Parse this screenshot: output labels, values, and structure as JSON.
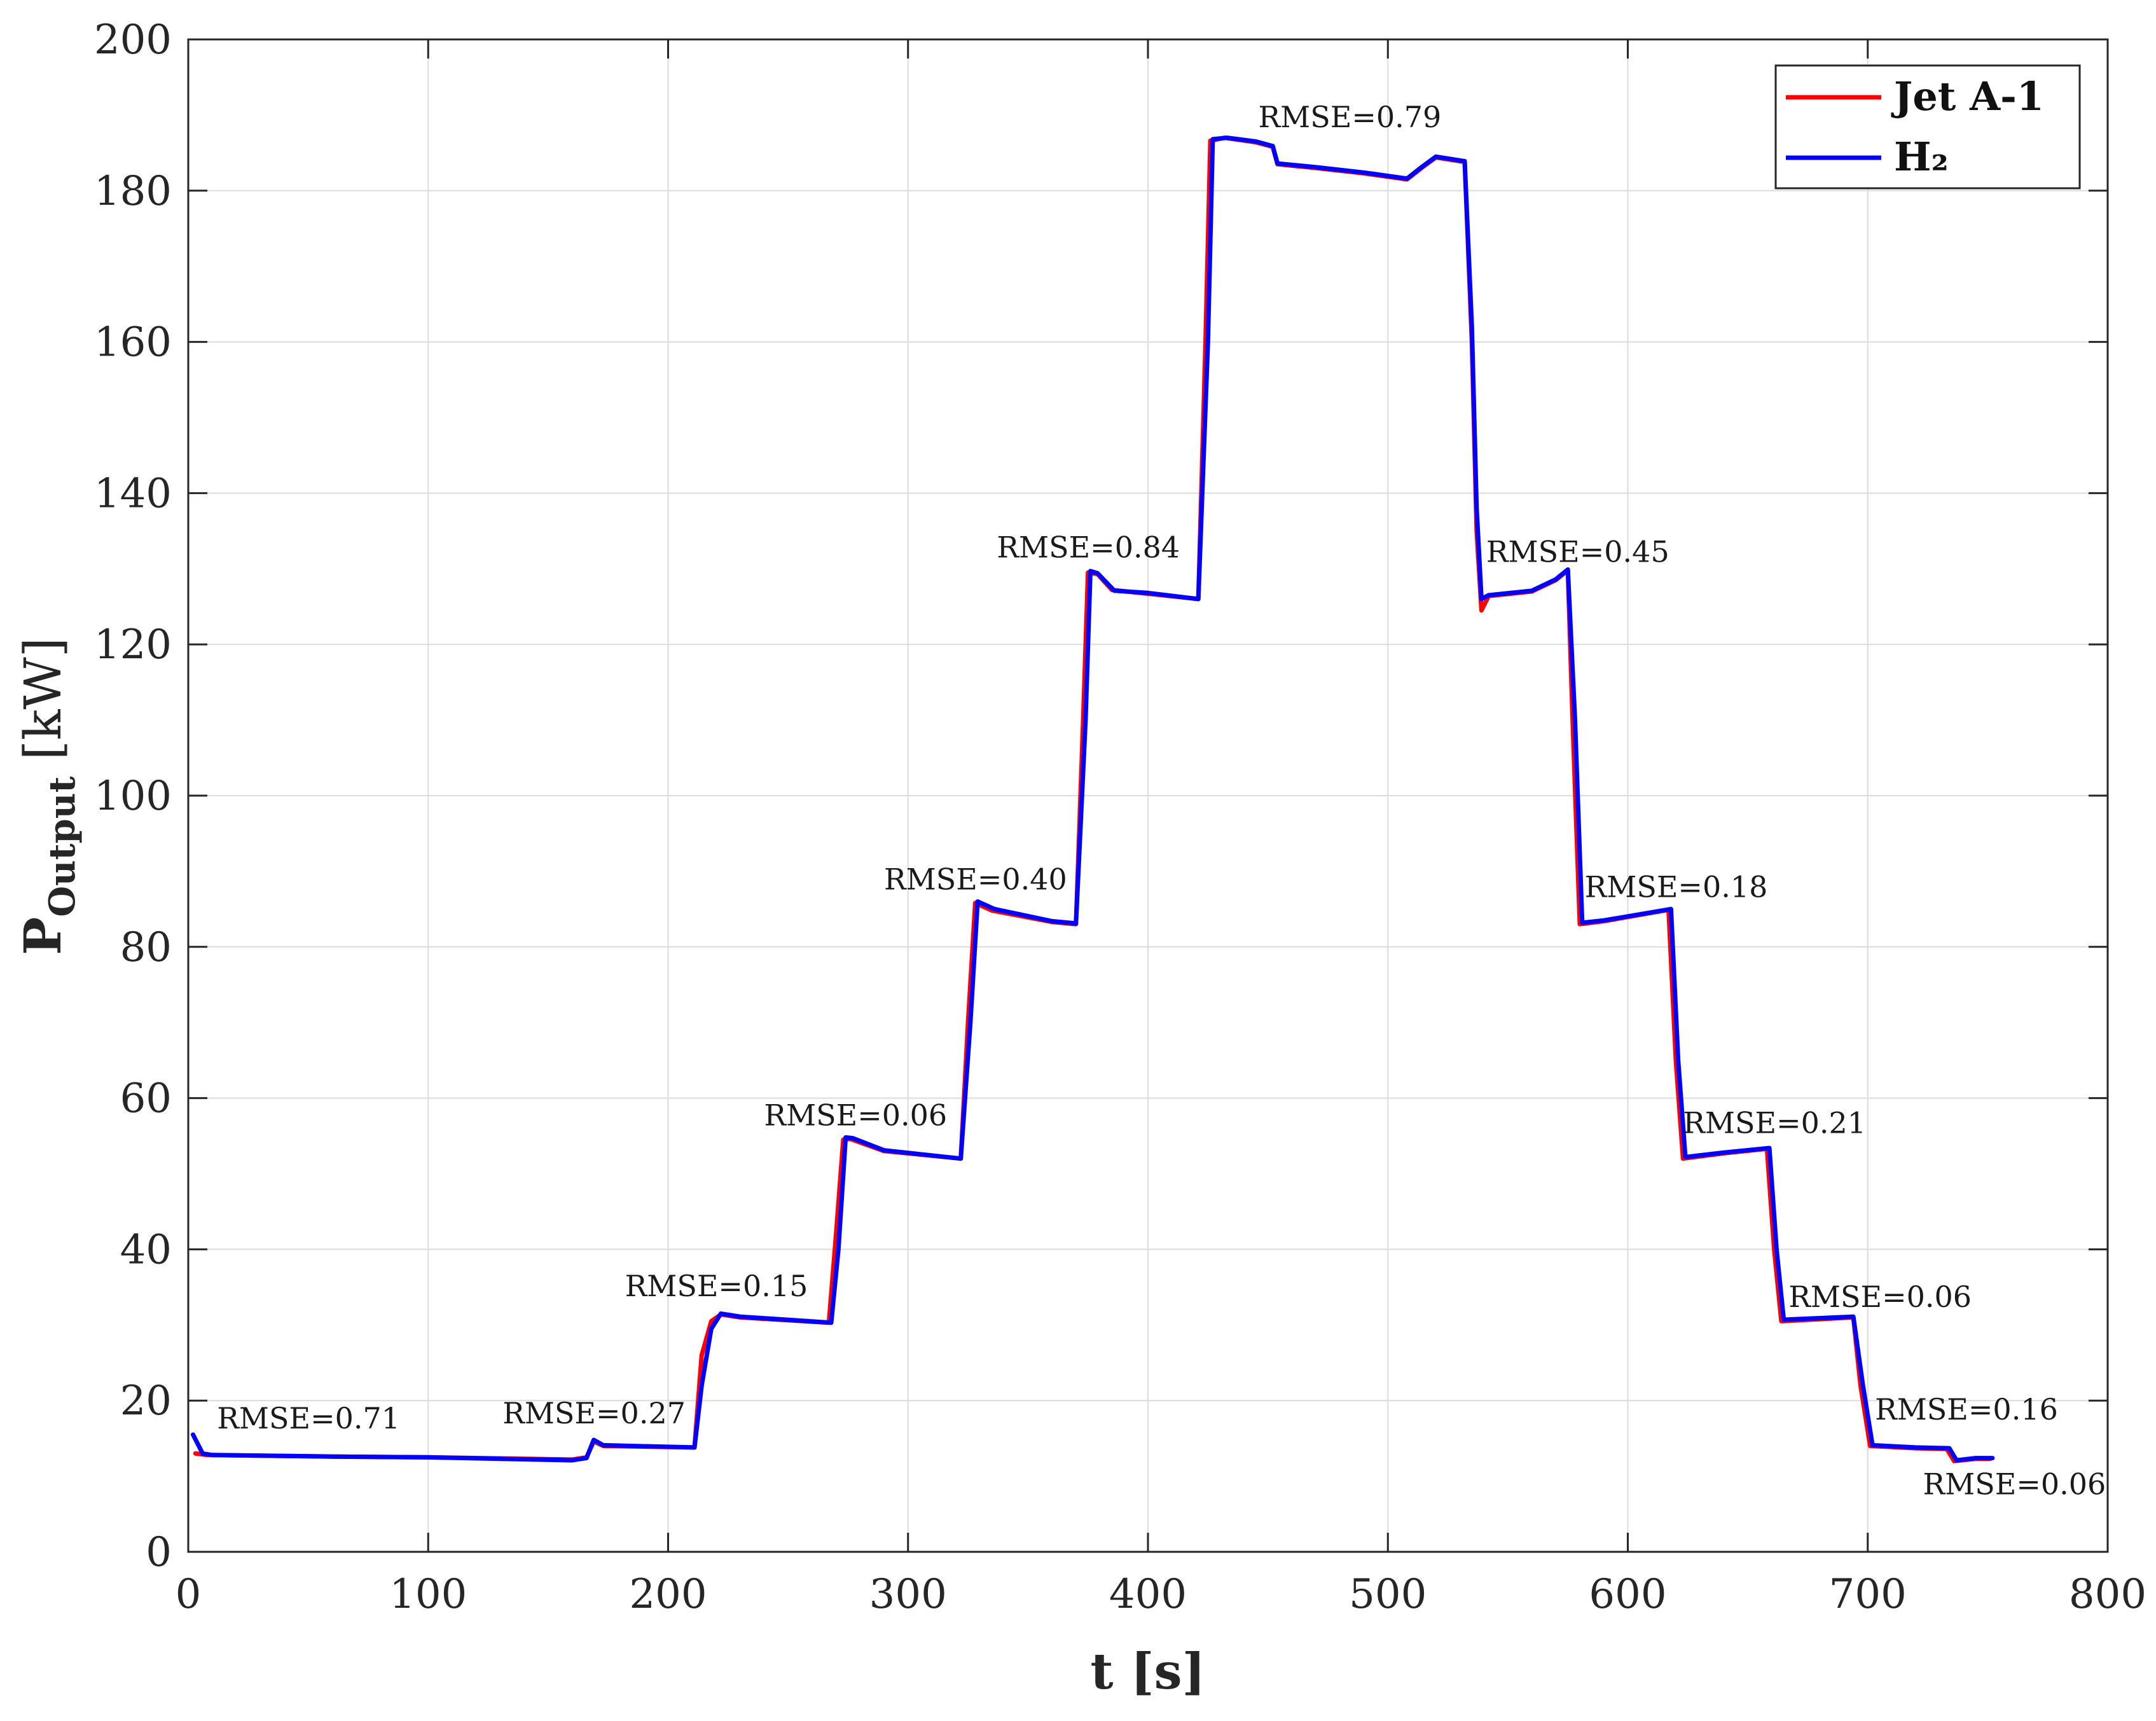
{
  "chart_data": {
    "type": "line",
    "xlabel": "t  [s]",
    "ylabel": "P",
    "ylabel_subscript": "Output",
    "ylabel_unit": " [kW]",
    "xlim": [
      0,
      800
    ],
    "ylim": [
      0,
      200
    ],
    "xticks": [
      0,
      100,
      200,
      300,
      400,
      500,
      600,
      700,
      800
    ],
    "yticks": [
      0,
      20,
      40,
      60,
      80,
      100,
      120,
      140,
      160,
      180,
      200
    ],
    "grid": true,
    "legend_position": "top-right",
    "series": [
      {
        "name": "Jet A-1",
        "color": "#ff0000",
        "points": [
          [
            3,
            13.0
          ],
          [
            8,
            12.8
          ],
          [
            60,
            12.6
          ],
          [
            100,
            12.5
          ],
          [
            160,
            12.2
          ],
          [
            166,
            12.5
          ],
          [
            169,
            14.6
          ],
          [
            173,
            14.0
          ],
          [
            211,
            13.8
          ],
          [
            214,
            26.0
          ],
          [
            218,
            30.5
          ],
          [
            222,
            31.4
          ],
          [
            230,
            31.0
          ],
          [
            267,
            30.3
          ],
          [
            270,
            42.0
          ],
          [
            273,
            54.5
          ],
          [
            276,
            54.6
          ],
          [
            290,
            53.0
          ],
          [
            322,
            52.0
          ],
          [
            325,
            70.0
          ],
          [
            328,
            85.8
          ],
          [
            335,
            84.8
          ],
          [
            360,
            83.3
          ],
          [
            370,
            83.0
          ],
          [
            373,
            110.0
          ],
          [
            375,
            129.5
          ],
          [
            379,
            129.3
          ],
          [
            385,
            127.2
          ],
          [
            400,
            126.7
          ],
          [
            421,
            126.0
          ],
          [
            424,
            160.0
          ],
          [
            426,
            186.6
          ],
          [
            432,
            187.0
          ],
          [
            445,
            186.4
          ],
          [
            452,
            185.8
          ],
          [
            454,
            183.5
          ],
          [
            470,
            183.0
          ],
          [
            490,
            182.3
          ],
          [
            508,
            181.5
          ],
          [
            514,
            183.0
          ],
          [
            520,
            184.4
          ],
          [
            532,
            183.8
          ],
          [
            535,
            160.0
          ],
          [
            537,
            135.0
          ],
          [
            539,
            124.5
          ],
          [
            542,
            126.4
          ],
          [
            560,
            127.0
          ],
          [
            570,
            128.5
          ],
          [
            575,
            129.8
          ],
          [
            577,
            110.0
          ],
          [
            580,
            83.0
          ],
          [
            590,
            83.4
          ],
          [
            617,
            84.9
          ],
          [
            620,
            65.0
          ],
          [
            623,
            52.0
          ],
          [
            640,
            52.7
          ],
          [
            658,
            53.3
          ],
          [
            661,
            40.0
          ],
          [
            664,
            30.5
          ],
          [
            694,
            31.0
          ],
          [
            697,
            22.0
          ],
          [
            701,
            14.0
          ],
          [
            720,
            13.7
          ],
          [
            733,
            13.6
          ],
          [
            736,
            12.0
          ],
          [
            745,
            12.3
          ],
          [
            751,
            12.3
          ]
        ]
      },
      {
        "name": "H₂",
        "color": "#0000ff",
        "points": [
          [
            2,
            15.5
          ],
          [
            6,
            13.0
          ],
          [
            10,
            12.8
          ],
          [
            60,
            12.6
          ],
          [
            100,
            12.5
          ],
          [
            160,
            12.1
          ],
          [
            166,
            12.4
          ],
          [
            169,
            14.8
          ],
          [
            173,
            14.1
          ],
          [
            211,
            13.8
          ],
          [
            214,
            22.0
          ],
          [
            218,
            29.5
          ],
          [
            222,
            31.5
          ],
          [
            230,
            31.1
          ],
          [
            268,
            30.3
          ],
          [
            271,
            40.0
          ],
          [
            274,
            54.8
          ],
          [
            277,
            54.7
          ],
          [
            290,
            53.1
          ],
          [
            322,
            52.0
          ],
          [
            326,
            70.0
          ],
          [
            329,
            86.0
          ],
          [
            336,
            85.0
          ],
          [
            360,
            83.4
          ],
          [
            370,
            83.1
          ],
          [
            374,
            110.0
          ],
          [
            376,
            129.7
          ],
          [
            379,
            129.4
          ],
          [
            386,
            127.1
          ],
          [
            400,
            126.8
          ],
          [
            421,
            126.0
          ],
          [
            425,
            160.0
          ],
          [
            427,
            186.8
          ],
          [
            433,
            187.0
          ],
          [
            445,
            186.5
          ],
          [
            452,
            185.9
          ],
          [
            454,
            183.6
          ],
          [
            470,
            183.1
          ],
          [
            490,
            182.4
          ],
          [
            508,
            181.6
          ],
          [
            514,
            183.1
          ],
          [
            520,
            184.5
          ],
          [
            532,
            183.9
          ],
          [
            535,
            162.0
          ],
          [
            537,
            138.0
          ],
          [
            539,
            126.0
          ],
          [
            542,
            126.5
          ],
          [
            560,
            127.1
          ],
          [
            570,
            128.6
          ],
          [
            575,
            129.9
          ],
          [
            578,
            110.0
          ],
          [
            581,
            83.2
          ],
          [
            590,
            83.5
          ],
          [
            618,
            85.0
          ],
          [
            621,
            65.0
          ],
          [
            624,
            52.2
          ],
          [
            640,
            52.8
          ],
          [
            659,
            53.4
          ],
          [
            662,
            40.0
          ],
          [
            665,
            30.7
          ],
          [
            694,
            31.1
          ],
          [
            698,
            22.0
          ],
          [
            702,
            14.1
          ],
          [
            720,
            13.8
          ],
          [
            734,
            13.7
          ],
          [
            737,
            12.1
          ],
          [
            745,
            12.4
          ],
          [
            752,
            12.4
          ]
        ]
      }
    ],
    "annotations": [
      {
        "text": "RMSE=0.71",
        "x": 12,
        "y": 16.3
      },
      {
        "text": "RMSE=0.27",
        "x": 131,
        "y": 17.0
      },
      {
        "text": "RMSE=0.15",
        "x": 182,
        "y": 33.8
      },
      {
        "text": "RMSE=0.06",
        "x": 240,
        "y": 56.4
      },
      {
        "text": "RMSE=0.40",
        "x": 290,
        "y": 87.6
      },
      {
        "text": "RMSE=0.84",
        "x": 337,
        "y": 131.5
      },
      {
        "text": "RMSE=0.79",
        "x": 446,
        "y": 188.4
      },
      {
        "text": "RMSE=0.45",
        "x": 541,
        "y": 130.9
      },
      {
        "text": "RMSE=0.18",
        "x": 582,
        "y": 86.6
      },
      {
        "text": "RMSE=0.21",
        "x": 623,
        "y": 55.4
      },
      {
        "text": "RMSE=0.06",
        "x": 667,
        "y": 32.4
      },
      {
        "text": "RMSE=0.16",
        "x": 703,
        "y": 17.5
      },
      {
        "text": "RMSE=0.06",
        "x": 723,
        "y": 7.6
      }
    ]
  }
}
